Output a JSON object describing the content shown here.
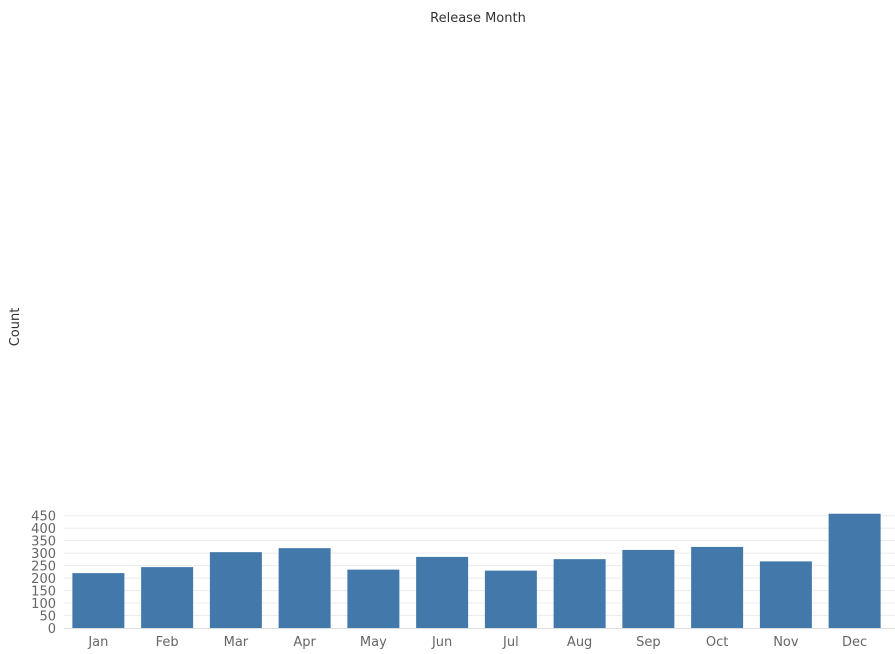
{
  "chart_data": {
    "type": "bar",
    "title": "Release Month",
    "xlabel": "",
    "ylabel": "Count",
    "categories": [
      "Jan",
      "Feb",
      "Mar",
      "Apr",
      "May",
      "Jun",
      "Jul",
      "Aug",
      "Sep",
      "Oct",
      "Nov",
      "Dec"
    ],
    "values": [
      220,
      244,
      304,
      320,
      234,
      285,
      230,
      276,
      313,
      325,
      267,
      458
    ],
    "ylim": [
      0,
      480
    ],
    "yticks": [
      0,
      50,
      100,
      150,
      200,
      250,
      300,
      350,
      400,
      450
    ],
    "grid": true,
    "legend": "none",
    "colors": {
      "bar": "#4279aa"
    }
  }
}
